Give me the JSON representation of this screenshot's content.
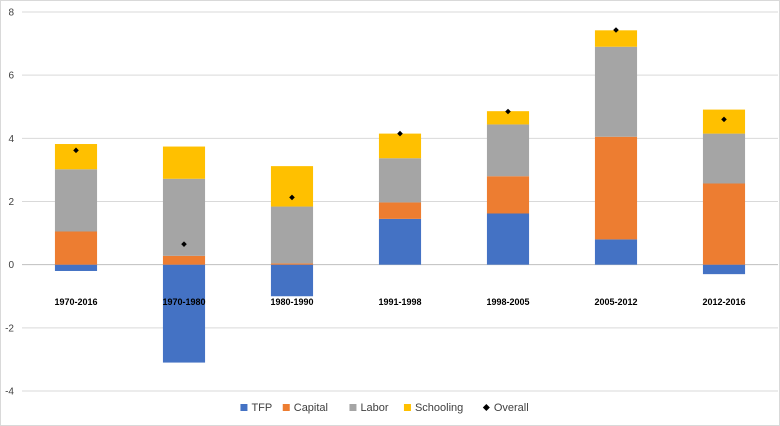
{
  "chart_data": {
    "type": "bar",
    "stacked": true,
    "categories": [
      "1970-2016",
      "1970-1980",
      "1980-1990",
      "1991-1998",
      "1998-2005",
      "2005-2012",
      "2012-2016"
    ],
    "series": [
      {
        "name": "TFP",
        "color": "#4472C4",
        "values": [
          -0.2,
          -3.1,
          -1.0,
          1.45,
          1.62,
          0.8,
          -0.3
        ]
      },
      {
        "name": "Capital",
        "color": "#ED7D31",
        "values": [
          1.05,
          0.28,
          0.04,
          0.52,
          1.18,
          3.25,
          2.57
        ]
      },
      {
        "name": "Labor",
        "color": "#A5A5A5",
        "values": [
          1.97,
          2.44,
          1.8,
          1.4,
          1.64,
          2.85,
          1.58
        ]
      },
      {
        "name": "Schooling",
        "color": "#FFC000",
        "values": [
          0.8,
          1.02,
          1.28,
          0.78,
          0.42,
          0.52,
          0.76
        ]
      }
    ],
    "overall": {
      "name": "Overall",
      "color": "#000000",
      "values": [
        3.62,
        0.65,
        2.13,
        4.15,
        4.85,
        7.43,
        4.6
      ]
    },
    "ylim": [
      -4,
      8
    ],
    "yticks": [
      -4,
      -2,
      0,
      2,
      4,
      6,
      8
    ],
    "legend_position": "bottom",
    "grid": true
  }
}
